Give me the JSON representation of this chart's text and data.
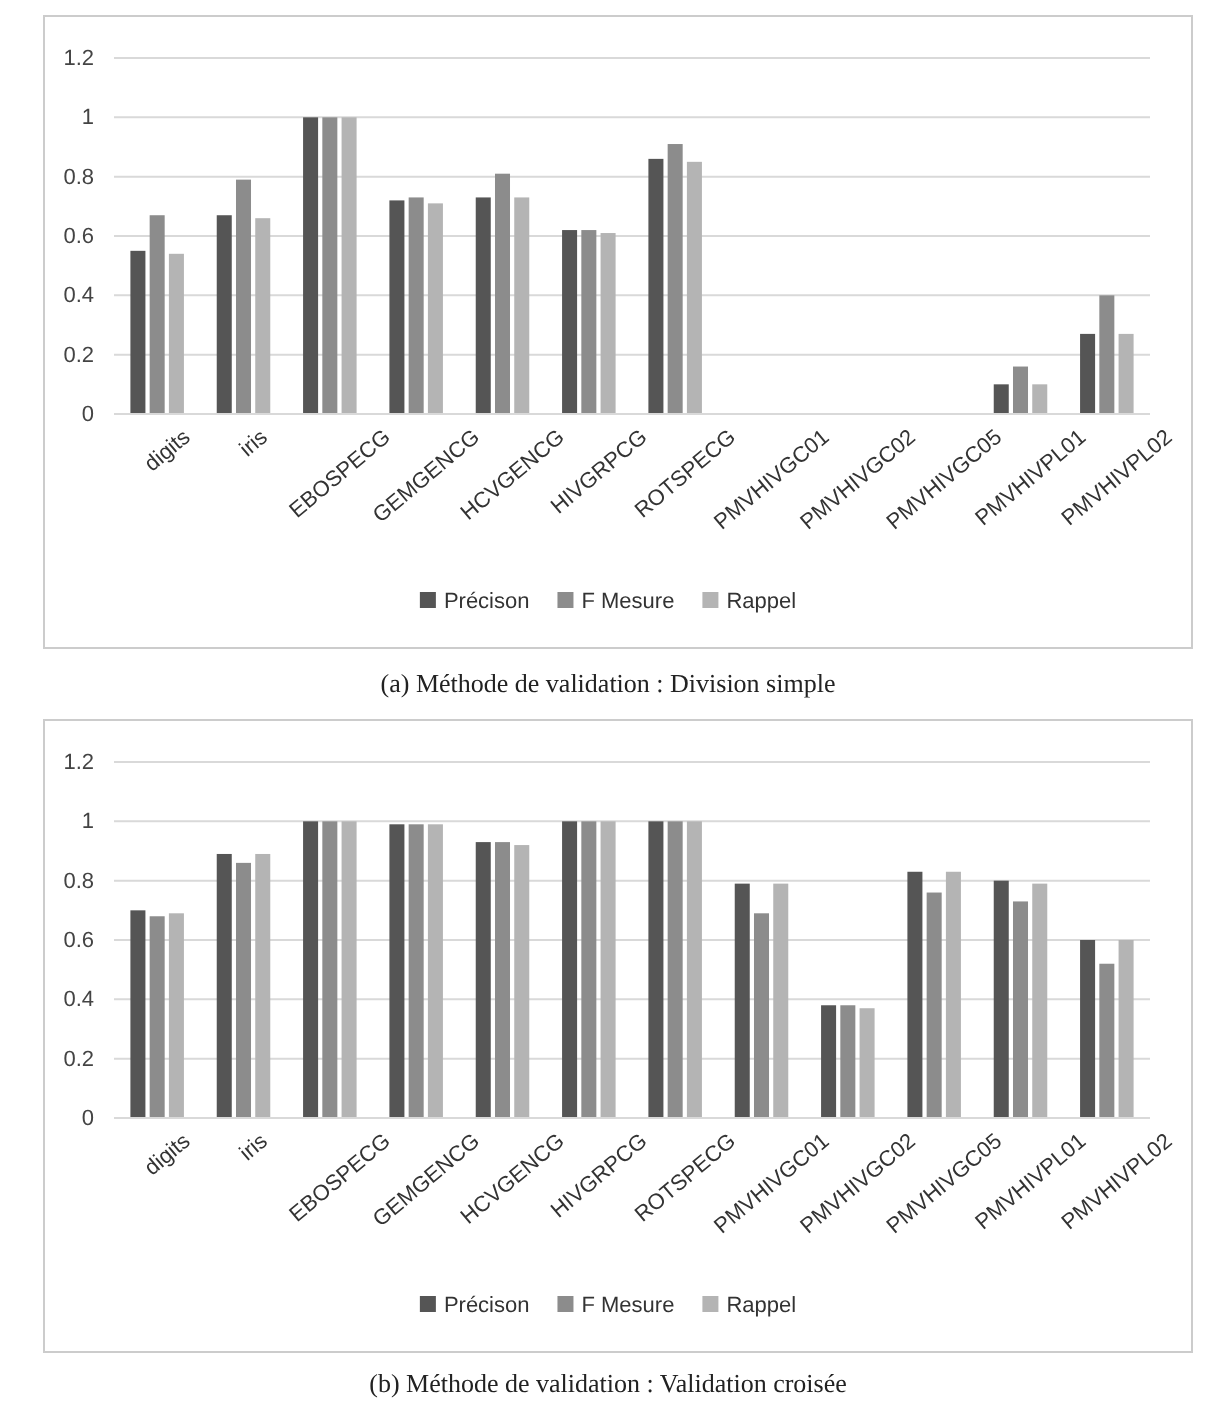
{
  "chart_data": [
    {
      "type": "bar",
      "categories": [
        "digits",
        "iris",
        "EBOSPECG",
        "GEMGENCG",
        "HCVGENCG",
        "HIVGRPCG",
        "ROTSPECG",
        "PMVHIVGC01",
        "PMVHIVGC02",
        "PMVHIVGC05",
        "PMVHIVPL01",
        "PMVHIVPL02"
      ],
      "series": [
        {
          "name": "Précison",
          "color": "#555555",
          "values": [
            0.55,
            0.67,
            1,
            0.72,
            0.73,
            0.62,
            0.86,
            0,
            0,
            0,
            0.1,
            0.27
          ]
        },
        {
          "name": "F Mesure",
          "color": "#8c8c8c",
          "values": [
            0.67,
            0.79,
            1,
            0.73,
            0.81,
            0.62,
            0.91,
            0,
            0,
            0,
            0.16,
            0.4
          ]
        },
        {
          "name": "Rappel",
          "color": "#b4b4b4",
          "values": [
            0.54,
            0.66,
            1,
            0.71,
            0.73,
            0.61,
            0.85,
            0,
            0,
            0,
            0.1,
            0.27
          ]
        }
      ],
      "ylim": [
        0,
        1.2
      ],
      "yticks": [
        {
          "value": 0,
          "label": "0"
        },
        {
          "value": 0.2,
          "label": "0.2"
        },
        {
          "value": 0.4,
          "label": "0.4"
        },
        {
          "value": 0.6,
          "label": "0.6"
        },
        {
          "value": 0.8,
          "label": "0.8"
        },
        {
          "value": 1,
          "label": "1"
        },
        {
          "value": 1.2,
          "label": "1.2"
        }
      ],
      "grid": "y",
      "legend": "bottom",
      "annotations": [
        "(a) Méthode de validation : Division simple"
      ]
    },
    {
      "type": "bar",
      "categories": [
        "digits",
        "iris",
        "EBOSPECG",
        "GEMGENCG",
        "HCVGENCG",
        "HIVGRPCG",
        "ROTSPECG",
        "PMVHIVGC01",
        "PMVHIVGC02",
        "PMVHIVGC05",
        "PMVHIVPL01",
        "PMVHIVPL02"
      ],
      "series": [
        {
          "name": "Précison",
          "color": "#555555",
          "values": [
            0.7,
            0.89,
            1,
            0.99,
            0.93,
            1,
            1,
            0.79,
            0.38,
            0.83,
            0.8,
            0.6
          ]
        },
        {
          "name": "F Mesure",
          "color": "#8c8c8c",
          "values": [
            0.68,
            0.86,
            1,
            0.99,
            0.93,
            1,
            1,
            0.69,
            0.38,
            0.76,
            0.73,
            0.52
          ]
        },
        {
          "name": "Rappel",
          "color": "#b4b4b4",
          "values": [
            0.69,
            0.89,
            1,
            0.99,
            0.92,
            1,
            1,
            0.79,
            0.37,
            0.83,
            0.79,
            0.6
          ]
        }
      ],
      "ylim": [
        0,
        1.2
      ],
      "yticks": [
        {
          "value": 0,
          "label": "0"
        },
        {
          "value": 0.2,
          "label": "0.2"
        },
        {
          "value": 0.4,
          "label": "0.4"
        },
        {
          "value": 0.6,
          "label": "0.6"
        },
        {
          "value": 0.8,
          "label": "0.8"
        },
        {
          "value": 1,
          "label": "1"
        },
        {
          "value": 1.2,
          "label": "1.2"
        }
      ],
      "grid": "y",
      "legend": "bottom",
      "annotations": [
        "(b) Méthode de validation : Validation croisée"
      ]
    }
  ]
}
